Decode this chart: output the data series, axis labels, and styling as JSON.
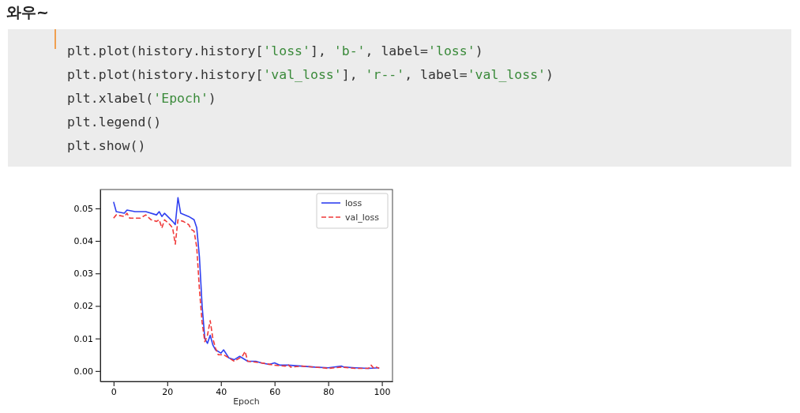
{
  "chart_data": {
    "type": "line",
    "title": "와우~",
    "xlabel": "Epoch",
    "annotations": [
      "plt.plot(history.history['loss'], 'b-', label='loss')",
      "plt.plot(history.history['val_loss'], 'r--', label='val_loss')",
      "plt.xlabel('Epoch')",
      "plt.legend()",
      "plt.show()"
    ],
    "xlim": [
      -4.95,
      103.95
    ],
    "xticks": [
      0,
      20,
      40,
      60,
      80,
      100
    ],
    "ylim": [
      -0.0032,
      0.0558
    ],
    "yticks": [
      {
        "value": 0,
        "label": "0.00"
      },
      {
        "value": 0.01,
        "label": "0.01"
      },
      {
        "value": 0.02,
        "label": "0.02"
      },
      {
        "value": 0.03,
        "label": "0.03"
      },
      {
        "value": 0.04,
        "label": "0.04"
      },
      {
        "value": 0.05,
        "label": "0.05"
      }
    ],
    "grid": false,
    "legend": "top right",
    "series": [
      {
        "name": "loss",
        "color": "#3040f0",
        "line_style": "solid",
        "x": [
          0,
          1,
          4,
          5,
          8,
          12,
          16,
          17,
          18,
          19,
          22,
          23,
          24,
          25,
          28,
          30,
          31,
          32,
          33,
          34,
          35,
          36,
          37,
          38,
          40,
          41,
          43,
          45,
          47,
          50,
          53,
          55,
          58,
          60,
          62,
          65,
          70,
          75,
          80,
          85,
          86,
          90,
          95,
          99
        ],
        "values": [
          0.052,
          0.049,
          0.0485,
          0.0495,
          0.049,
          0.049,
          0.048,
          0.049,
          0.0475,
          0.0485,
          0.046,
          0.045,
          0.0533,
          0.0485,
          0.0475,
          0.0465,
          0.044,
          0.035,
          0.02,
          0.01,
          0.0085,
          0.011,
          0.008,
          0.0065,
          0.0055,
          0.0065,
          0.004,
          0.0035,
          0.0045,
          0.003,
          0.003,
          0.0025,
          0.002,
          0.0025,
          0.0018,
          0.0018,
          0.0015,
          0.0012,
          0.001,
          0.0015,
          0.0012,
          0.001,
          0.0008,
          0.001
        ]
      },
      {
        "name": "val_loss",
        "color": "#f03a3a",
        "line_style": "dashed",
        "x": [
          0,
          1,
          4,
          5,
          6,
          10,
          12,
          14,
          16,
          17,
          18,
          19,
          21,
          22,
          23,
          24,
          26,
          28,
          29,
          30,
          31,
          32,
          33,
          34,
          35,
          36,
          37,
          38,
          39,
          41,
          43,
          45,
          47,
          48,
          49,
          50,
          55,
          60,
          64,
          65,
          66,
          70,
          75,
          80,
          85,
          90,
          95,
          96,
          97,
          98,
          99
        ],
        "values": [
          0.047,
          0.048,
          0.0475,
          0.0485,
          0.047,
          0.047,
          0.048,
          0.0465,
          0.046,
          0.0465,
          0.044,
          0.0465,
          0.045,
          0.044,
          0.039,
          0.0465,
          0.046,
          0.045,
          0.0435,
          0.043,
          0.038,
          0.025,
          0.015,
          0.009,
          0.011,
          0.0155,
          0.01,
          0.007,
          0.005,
          0.005,
          0.004,
          0.003,
          0.004,
          0.0045,
          0.006,
          0.003,
          0.0025,
          0.0018,
          0.0015,
          0.002,
          0.0012,
          0.0015,
          0.0012,
          0.0008,
          0.0012,
          0.0008,
          0.0008,
          0.0018,
          0.0008,
          0.0012,
          0.0008
        ]
      }
    ]
  }
}
